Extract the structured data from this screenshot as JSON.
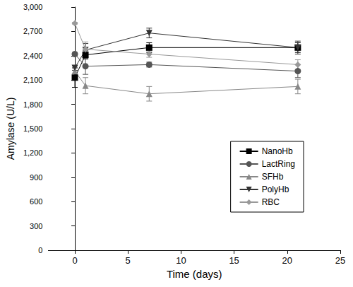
{
  "chart_data": {
    "type": "line",
    "x_label": "Time (days)",
    "y_label": "Amylase (U/L)",
    "xlim": [
      -2.5,
      25
    ],
    "xticks": [
      0,
      5,
      10,
      15,
      20,
      25
    ],
    "ylim": [
      0,
      3000
    ],
    "yticks": [
      0,
      300,
      600,
      900,
      1200,
      1500,
      1800,
      2100,
      2400,
      2700,
      3000
    ],
    "grid": false,
    "legend": "right",
    "x": [
      0,
      1,
      7,
      21
    ],
    "series": [
      {
        "name": "NanoHb",
        "color": "#000000",
        "marker": "square",
        "values": [
          2130,
          2410,
          2500,
          2500
        ],
        "errors": [
          120,
          50,
          60,
          60
        ]
      },
      {
        "name": "LactRing",
        "color": "#555555",
        "marker": "circle",
        "values": [
          2420,
          2270,
          2290,
          2210
        ],
        "errors": [
          20,
          100,
          30,
          80
        ]
      },
      {
        "name": "SFHb",
        "color": "#888888",
        "marker": "triangle",
        "values": [
          2210,
          2030,
          1930,
          2020
        ],
        "errors": [
          60,
          100,
          90,
          90
        ]
      },
      {
        "name": "PolyHb",
        "color": "#333333",
        "marker": "triangle_down",
        "values": [
          2250,
          2470,
          2680,
          2500
        ],
        "errors": [
          30,
          80,
          60,
          80
        ]
      },
      {
        "name": "RBC",
        "color": "#999999",
        "marker": "diamond",
        "values": [
          2800,
          2480,
          2420,
          2290
        ],
        "errors": [
          10,
          90,
          40,
          60
        ]
      }
    ]
  }
}
